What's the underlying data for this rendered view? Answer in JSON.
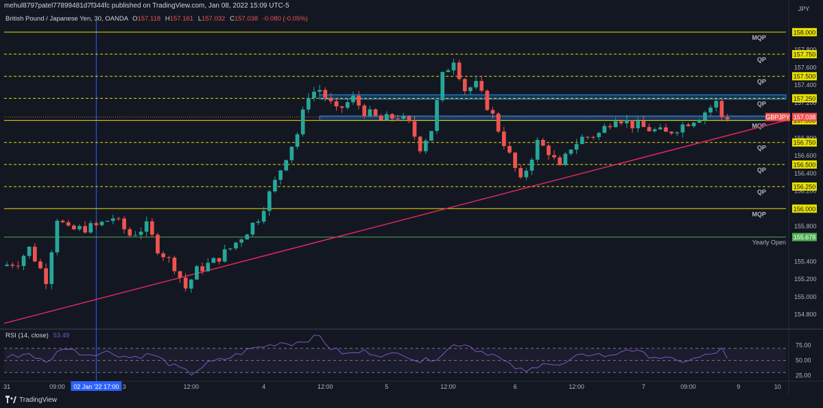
{
  "header": {
    "publisher_line": "mehul8797patel77899481d7f344fc published on TradingView.com, Jan 08, 2022 15:09 UTC-5"
  },
  "legend": {
    "symbol_line": "British Pound / Japanese Yen, 30, OANDA",
    "open_key": "O",
    "open": "157.118",
    "high_key": "H",
    "high": "157.161",
    "low_key": "L",
    "low": "157.032",
    "close_key": "C",
    "close": "157.038",
    "change": "-0.080 (-0.05%)"
  },
  "currency": "JPY",
  "colors": {
    "background": "#131722",
    "up": "#26a69a",
    "down": "#ef5350",
    "level_line": "#e8e000",
    "trendline": "#e0285e",
    "zone": "#2196f3",
    "yearly_open": "#4caf50",
    "rsi": "#7e57c2"
  },
  "chart_data": [
    {
      "type": "candlestick",
      "symbol": "GBPJPY",
      "current_price": "157.038",
      "ylim": [
        154.65,
        158.1
      ],
      "y_ticks": [
        "157.800",
        "157.600",
        "157.400",
        "157.200",
        "156.800",
        "156.600",
        "156.400",
        "156.200",
        "155.800",
        "155.400",
        "155.200",
        "155.000",
        "154.800"
      ],
      "x_ticks": [
        "31",
        "09:00",
        "3",
        "12:00",
        "4",
        "12:00",
        "5",
        "12:00",
        "6",
        "12:00",
        "7",
        "09:00",
        "9",
        "10"
      ],
      "x_tick_pos": [
        0,
        9,
        21,
        33,
        46,
        57,
        68,
        79,
        91,
        102,
        114,
        122,
        131,
        138
      ],
      "x_crosshair_label": "02 Jan '22   17:00",
      "x_crosshair_pos": 16,
      "bar_count": 140,
      "anchors": [
        [
          0,
          155.35
        ],
        [
          3,
          155.4
        ],
        [
          5,
          155.55
        ],
        [
          8,
          155.2
        ],
        [
          10,
          155.9
        ],
        [
          12,
          155.75
        ],
        [
          17,
          155.8
        ],
        [
          20,
          155.9
        ],
        [
          23,
          155.7
        ],
        [
          26,
          155.8
        ],
        [
          28,
          155.55
        ],
        [
          31,
          155.35
        ],
        [
          33,
          155.1
        ],
        [
          35,
          155.3
        ],
        [
          38,
          155.4
        ],
        [
          41,
          155.55
        ],
        [
          44,
          155.75
        ],
        [
          46,
          155.9
        ],
        [
          49,
          156.3
        ],
        [
          51,
          156.6
        ],
        [
          53,
          156.85
        ],
        [
          55,
          157.3
        ],
        [
          57,
          157.35
        ],
        [
          60,
          157.1
        ],
        [
          63,
          157.25
        ],
        [
          65,
          157.1
        ],
        [
          68,
          157.0
        ],
        [
          71,
          157.05
        ],
        [
          73,
          156.95
        ],
        [
          75,
          156.7
        ],
        [
          77,
          156.9
        ],
        [
          79,
          157.5
        ],
        [
          81,
          157.7
        ],
        [
          83,
          157.35
        ],
        [
          85,
          157.4
        ],
        [
          88,
          157.05
        ],
        [
          90,
          156.75
        ],
        [
          93,
          156.3
        ],
        [
          96,
          156.75
        ],
        [
          98,
          156.65
        ],
        [
          100,
          156.45
        ],
        [
          102,
          156.7
        ],
        [
          104,
          156.8
        ],
        [
          107,
          156.85
        ],
        [
          110,
          157.05
        ],
        [
          113,
          156.95
        ],
        [
          116,
          156.9
        ],
        [
          119,
          156.85
        ],
        [
          122,
          156.95
        ],
        [
          125,
          157.05
        ],
        [
          128,
          157.2
        ],
        [
          129,
          157.04
        ]
      ],
      "levels": [
        {
          "price": 158.0,
          "label": "158.000",
          "tag": "MQP",
          "style": "solid"
        },
        {
          "price": 157.75,
          "label": "157.750",
          "tag": "QP",
          "style": "dashed"
        },
        {
          "price": 157.5,
          "label": "157.500",
          "tag": "QP",
          "style": "dashed"
        },
        {
          "price": 157.25,
          "label": "157.250",
          "tag": "QP",
          "style": "dashed"
        },
        {
          "price": 157.0,
          "label": "157.000",
          "tag": "MQP",
          "style": "solid"
        },
        {
          "price": 156.75,
          "label": "156.750",
          "tag": "QP",
          "style": "dashed"
        },
        {
          "price": 156.5,
          "label": "156.500",
          "tag": "QP",
          "style": "dashed"
        },
        {
          "price": 156.25,
          "label": "156.250",
          "tag": "QP",
          "style": "dashed"
        },
        {
          "price": 156.0,
          "label": "156.000",
          "tag": "MQP",
          "style": "solid"
        }
      ],
      "yearly_open": {
        "price": 155.678,
        "label": "155.678",
        "tag": "Yearly Open"
      },
      "zones": [
        {
          "bar_start": 56,
          "bar_end": 140,
          "price_low": 157.24,
          "price_high": 157.29
        },
        {
          "bar_start": 56,
          "bar_end": 140,
          "price_low": 157.0,
          "price_high": 157.05
        }
      ],
      "trendline": {
        "bar_start": 0,
        "price_start": 154.7,
        "bar_end": 140,
        "price_end": 157.0
      }
    },
    {
      "type": "line",
      "name": "RSI (14, close)",
      "value": "53.49",
      "ylim": [
        20,
        95
      ],
      "y_ticks": [
        "75.00",
        "50.00",
        "25.00"
      ],
      "band": [
        30,
        70
      ],
      "anchors": [
        [
          0,
          55
        ],
        [
          4,
          62
        ],
        [
          7,
          45
        ],
        [
          10,
          72
        ],
        [
          14,
          60
        ],
        [
          18,
          64
        ],
        [
          22,
          55
        ],
        [
          26,
          60
        ],
        [
          30,
          40
        ],
        [
          33,
          28
        ],
        [
          36,
          45
        ],
        [
          40,
          55
        ],
        [
          44,
          70
        ],
        [
          47,
          75
        ],
        [
          49,
          80
        ],
        [
          51,
          78
        ],
        [
          54,
          85
        ],
        [
          56,
          90
        ],
        [
          58,
          70
        ],
        [
          61,
          60
        ],
        [
          64,
          65
        ],
        [
          68,
          58
        ],
        [
          71,
          62
        ],
        [
          74,
          48
        ],
        [
          77,
          55
        ],
        [
          80,
          75
        ],
        [
          82,
          78
        ],
        [
          84,
          68
        ],
        [
          87,
          60
        ],
        [
          90,
          42
        ],
        [
          93,
          30
        ],
        [
          96,
          48
        ],
        [
          99,
          40
        ],
        [
          102,
          55
        ],
        [
          105,
          62
        ],
        [
          108,
          56
        ],
        [
          111,
          70
        ],
        [
          114,
          60
        ],
        [
          117,
          55
        ],
        [
          120,
          48
        ],
        [
          123,
          52
        ],
        [
          126,
          60
        ],
        [
          128,
          68
        ],
        [
          129,
          53.49
        ]
      ]
    }
  ],
  "footer": {
    "brand": "TradingView"
  }
}
